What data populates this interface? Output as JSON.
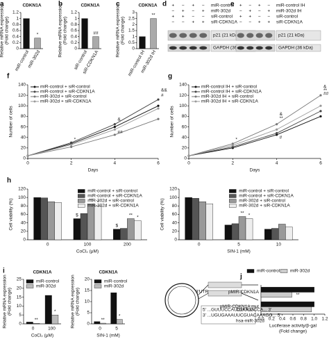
{
  "chart_data": [
    {
      "panel": "a",
      "type": "bar",
      "title": "CDKN1A",
      "ylabel": [
        "Relative mRNA expression",
        "(Fold change)"
      ],
      "categories": [
        "miR-control",
        "miR-302d"
      ],
      "values": [
        1,
        0.35
      ],
      "colors": [
        "#111111",
        "#aaaaaa"
      ],
      "ylim": [
        0,
        1.2
      ],
      "yticks": [
        0,
        0.2,
        0.4,
        0.6,
        0.8,
        1,
        1.2
      ],
      "annotations": [
        {
          "text": "*",
          "category": "miR-302d"
        }
      ]
    },
    {
      "panel": "b",
      "type": "bar",
      "title": "CDKN1A",
      "ylabel": [
        "Relative mRNA expression",
        "(Fold change)"
      ],
      "categories": [
        "siR-control",
        "siR-CDKN1A"
      ],
      "values": [
        1,
        0.4
      ],
      "colors": [
        "#111111",
        "#aaaaaa"
      ],
      "ylim": [
        0,
        1.2
      ],
      "yticks": [
        0,
        0.2,
        0.4,
        0.6,
        0.8,
        1,
        1.2
      ],
      "annotations": [
        {
          "text": "##",
          "category": "siR-CDKN1A"
        }
      ]
    },
    {
      "panel": "c",
      "type": "bar",
      "title": "CDKN1A",
      "ylabel": [
        "Relative mRNA expression",
        "(Fold change)"
      ],
      "categories": [
        "miR-control IH",
        "miR-302d IH"
      ],
      "values": [
        1,
        2.5
      ],
      "colors": [
        "#111111",
        "#aaaaaa"
      ],
      "ylim": [
        0,
        3
      ],
      "yticks": [
        0,
        0.5,
        1,
        1.5,
        2,
        2.5,
        3
      ],
      "annotations": [
        {
          "text": "**",
          "category": "miR-302d IH"
        }
      ]
    },
    {
      "panel": "f",
      "type": "line",
      "xlabel": "Days",
      "ylabel": [
        "Number of cells"
      ],
      "legend": "upper left",
      "x": [
        0,
        2,
        4,
        6
      ],
      "xlim": [
        0,
        6
      ],
      "xticks": [
        0,
        2,
        4,
        6
      ],
      "ylim": [
        0,
        140
      ],
      "yticks": [
        0,
        20,
        40,
        60,
        80,
        100,
        120,
        140
      ],
      "series": [
        {
          "name": "miR-control + siR-control",
          "color": "#111111",
          "values": [
            5,
            28,
            60,
            100
          ]
        },
        {
          "name": "miR-control + siR-CDKN1A",
          "color": "#444444",
          "values": [
            5,
            30,
            65,
            112
          ]
        },
        {
          "name": "miR-302d + siR-control",
          "color": "#777777",
          "values": [
            5,
            22,
            45,
            75
          ]
        },
        {
          "name": "miR-302d + siR-CDKN1A",
          "color": "#999999",
          "values": [
            5,
            26,
            55,
            95
          ]
        }
      ],
      "annotations": [
        {
          "text": "*",
          "x": 2,
          "y": 36
        },
        {
          "text": "&",
          "x": 4,
          "y": 74
        },
        {
          "text": "##",
          "x": 4,
          "y": 50
        },
        {
          "text": "&&",
          "x": 6,
          "y": 130
        },
        {
          "text": "#",
          "x": 6,
          "y": 120
        }
      ]
    },
    {
      "panel": "g",
      "type": "line",
      "xlabel": "Days",
      "ylabel": [
        "Number of cells"
      ],
      "legend": "upper left",
      "x": [
        0,
        2,
        4,
        6
      ],
      "xlim": [
        0,
        6
      ],
      "xticks": [
        0,
        2,
        4,
        6
      ],
      "ylim": [
        0,
        140
      ],
      "yticks": [
        0,
        20,
        40,
        60,
        80,
        100,
        120,
        140
      ],
      "series": [
        {
          "name": "miR-control IH + siR-control",
          "color": "#111111",
          "values": [
            5,
            20,
            45,
            80
          ]
        },
        {
          "name": "miR-control IH + siR-CDKN1A",
          "color": "#444444",
          "values": [
            5,
            22,
            48,
            90
          ]
        },
        {
          "name": "miR-302d IH + siR-control",
          "color": "#777777",
          "values": [
            5,
            28,
            65,
            120
          ]
        },
        {
          "name": "miR-302d IH + siR-CDKN1A",
          "color": "#999999",
          "values": [
            5,
            25,
            55,
            100
          ]
        }
      ],
      "annotations": [
        {
          "text": "*",
          "x": 2,
          "y": 36
        },
        {
          "text": "&",
          "x": 4,
          "y": 84
        },
        {
          "text": "**",
          "x": 4,
          "y": 76
        },
        {
          "text": "#",
          "x": 4,
          "y": 40
        },
        {
          "text": "&",
          "x": 6,
          "y": 136
        },
        {
          "text": "**",
          "x": 6,
          "y": 129
        },
        {
          "text": "##",
          "x": 6,
          "y": 123
        }
      ]
    },
    {
      "panel": "h",
      "type": "bar",
      "xlabel": "CoCl₂ (μM)",
      "ylabel": [
        "Cell viability (%)"
      ],
      "legend": "upper right",
      "categories": [
        "0",
        "100",
        "200"
      ],
      "ylim": [
        0,
        120
      ],
      "yticks": [
        0,
        20,
        40,
        60,
        80,
        100,
        120
      ],
      "series": [
        {
          "name": "miR-control + siR-control",
          "color": "#111111",
          "values": [
            100,
            50,
            25
          ]
        },
        {
          "name": "miR-control + siR-CDKN1A",
          "color": "#555555",
          "values": [
            99,
            62,
            27
          ]
        },
        {
          "name": "miR-302d + siR-control",
          "color": "#999999",
          "values": [
            90,
            85,
            50
          ]
        },
        {
          "name": "miR-302d + siR-CDKN1A",
          "color": "#eeeeee",
          "values": [
            88,
            80,
            45
          ]
        }
      ],
      "annotations": [
        {
          "text": "$",
          "category": "100",
          "series": 0
        },
        {
          "text": "**",
          "category": "100",
          "series": 2
        },
        {
          "text": "*",
          "category": "100",
          "series": 3
        },
        {
          "text": "$",
          "category": "200",
          "series": 0
        },
        {
          "text": "**",
          "category": "200",
          "series": 2
        },
        {
          "text": "*",
          "category": "200",
          "series": 3
        }
      ]
    },
    {
      "type": "bar",
      "xlabel": "SIN-1 (mM)",
      "ylabel": [
        "Cell viability (%)"
      ],
      "legend": "upper right",
      "categories": [
        "0",
        "5",
        "10"
      ],
      "ylim": [
        0,
        120
      ],
      "yticks": [
        0,
        20,
        40,
        60,
        80,
        100,
        120
      ],
      "series": [
        {
          "name": "miR-control + siR-control",
          "color": "#111111",
          "values": [
            100,
            35,
            25
          ]
        },
        {
          "name": "miR-control + siR-CDKN1A",
          "color": "#555555",
          "values": [
            98,
            38,
            27
          ]
        },
        {
          "name": "miR-302d + siR-control",
          "color": "#999999",
          "values": [
            90,
            55,
            37
          ]
        },
        {
          "name": "miR-302d + siR-CDKN1A",
          "color": "#eeeeee",
          "values": [
            85,
            50,
            30
          ]
        }
      ],
      "annotations": [
        {
          "text": "**",
          "category": "5",
          "series": 2
        },
        {
          "text": "*",
          "category": "5",
          "series": 3
        }
      ]
    },
    {
      "panel": "i",
      "type": "bar",
      "title": "CDKN1A",
      "xlabel": "CoCl₂ (μM)",
      "ylabel": [
        "Relative mRNA expression",
        "(Fold change)"
      ],
      "legend": "upper left",
      "categories": [
        "0",
        "100"
      ],
      "ylim": [
        0,
        25
      ],
      "yticks": [
        0,
        5,
        10,
        15,
        20,
        25
      ],
      "series": [
        {
          "name": "miR-control",
          "color": "#111111",
          "values": [
            1,
            16
          ]
        },
        {
          "name": "miR-302d",
          "color": "#bbbbbb",
          "values": [
            0.3,
            5
          ]
        }
      ],
      "annotations": [
        {
          "text": "**",
          "category": "0",
          "series": 1
        },
        {
          "text": "*",
          "category": "100",
          "series": 1
        }
      ]
    },
    {
      "type": "bar",
      "title": "CDKN1A",
      "xlabel": "SIN-1 (mM)",
      "ylabel": [
        "Relative mRNA expression",
        "(Fold change)"
      ],
      "legend": "upper left",
      "categories": [
        "0",
        "5"
      ],
      "ylim": [
        0,
        20
      ],
      "yticks": [
        0,
        5,
        10,
        15,
        20
      ],
      "series": [
        {
          "name": "miR-control",
          "color": "#111111",
          "values": [
            1,
            14
          ]
        },
        {
          "name": "miR-302d",
          "color": "#bbbbbb",
          "values": [
            0.3,
            2
          ]
        }
      ],
      "annotations": [
        {
          "text": "**",
          "category": "0",
          "series": 1
        },
        {
          "text": "*",
          "category": "5",
          "series": 1
        }
      ]
    },
    {
      "panel": "j",
      "type": "hbar",
      "xlabel": [
        "Luciferase activity/β-gal",
        "(Fold change)"
      ],
      "legend": "top",
      "categories": [
        "pMIR-CDKN1A",
        "pMIR-CDKN1A mut"
      ],
      "xlim": [
        0,
        1.2
      ],
      "xticks": [
        {
          "value": 0,
          "label": "0.0"
        },
        0.2,
        0.4,
        0.6,
        0.8,
        {
          "value": 1,
          "label": "1.0"
        },
        1.2
      ],
      "series": [
        {
          "name": "miR-control",
          "color": "#111111",
          "values": [
            1,
            1
          ]
        },
        {
          "name": "miR-302d",
          "color": "#cccccc",
          "values": [
            0.58,
            0.95
          ]
        }
      ],
      "annotations": [
        {
          "text": "**",
          "category": "pMIR-CDKN1A",
          "series": 1
        }
      ]
    }
  ],
  "blots": [
    {
      "panel": "d",
      "rows": [
        {
          "label": "miR-control",
          "signs": [
            "+",
            "−",
            "+",
            "−"
          ]
        },
        {
          "label": "miR-302d",
          "signs": [
            "−",
            "+",
            "−",
            "+"
          ]
        },
        {
          "label": "siR-control",
          "signs": [
            "+",
            "+",
            "−",
            "−"
          ]
        },
        {
          "label": "siR-CDKN1A",
          "signs": [
            "−",
            "−",
            "+",
            "+"
          ]
        }
      ],
      "bands": [
        "p21 (21 kDa)",
        "GAPDH (36 kDa)"
      ]
    },
    {
      "panel": "e",
      "rows": [
        {
          "label": "miR-control IH",
          "signs": [
            "+",
            "−",
            "+",
            "−"
          ]
        },
        {
          "label": "miR-302d IH",
          "signs": [
            "−",
            "+",
            "−",
            "+"
          ]
        },
        {
          "label": "siR-control",
          "signs": [
            "+",
            "+",
            "−",
            "−"
          ]
        },
        {
          "label": "siR-CDKN1A",
          "signs": [
            "−",
            "−",
            "+",
            "+"
          ]
        }
      ],
      "bands": [
        "p21 (21 kDa)",
        "GAPDH (36 kDa)"
      ]
    }
  ],
  "diagram": {
    "labels": [
      "3'UTR",
      "5' ...GUUUCCAUGUUUCCCA... 3'",
      "3' ...UGUGAAAUUCGUACAAAGG... 5'",
      "hsa-miR-302d",
      "CDKN1A"
    ]
  }
}
